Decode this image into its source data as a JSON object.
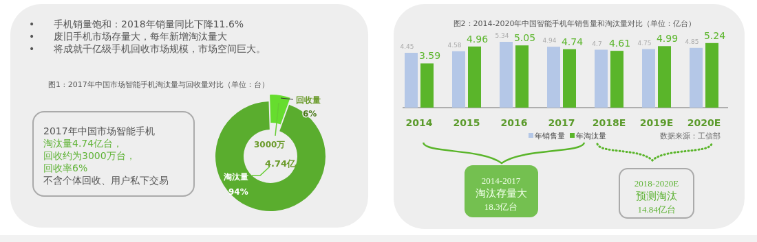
{
  "chart_data": [
    {
      "type": "donut",
      "title": "图1 : 2017年中国市场智能手机淘汰量与回收量对比（单位：台）",
      "categories": [
        "回收量",
        "淘汰量"
      ],
      "values": [
        6,
        94
      ],
      "colors": [
        "#66dd2e",
        "#5aad2e"
      ],
      "value_labels": [
        "6%",
        "94%"
      ],
      "annotations": [
        "• 手机销量饱和：2018年销量同比下降11.6%",
        "• 废旧手机市场存量大，每年新增淘汰量大",
        "• 将成就千亿级手机回收市场规模，市场空间巨大。",
        "2017年中国市场智能手机",
        "淘汰量4.74亿台，",
        "回收约为3000万台，",
        "回收率6%",
        "不含个体回收、用户私下交易",
        "3000万",
        "4.74亿"
      ]
    },
    {
      "type": "bar",
      "title": "图2：2014-2020年中国智能手机年销售量和淘汰量对比（单位：亿台）",
      "categories": [
        "2014",
        "2015",
        "2016",
        "2017",
        "2018E",
        "2019E",
        "2020E"
      ],
      "series": [
        {
          "name": "年销售量",
          "color": "#b4c7e7",
          "values": [
            4.45,
            4.58,
            5.34,
            4.94,
            4.7,
            4.75,
            4.85
          ]
        },
        {
          "name": "年淘汰量",
          "color": "#5ab52a",
          "values": [
            3.59,
            4.96,
            5.05,
            4.74,
            4.61,
            4.99,
            5.24
          ]
        }
      ],
      "data_labels": true,
      "legend": "bottom",
      "annotations": [
        "数据来源：工信部",
        "2014-2017\n淘汰存量大\n18.3亿台",
        "2018-2020E\n预测淘汰\n14.84亿台"
      ]
    }
  ]
}
